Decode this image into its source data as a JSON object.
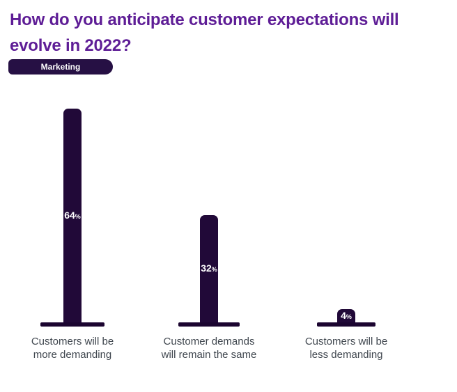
{
  "header": {
    "title_lines": [
      "How do you anticipate customer expectations will",
      "evolve in 2022?"
    ],
    "badge_label": "Marketing"
  },
  "colors": {
    "title_purple": "#5e1d96",
    "bar_fill": "#210938",
    "base_fill": "#1b0530",
    "badge_bg": "#261044",
    "value_text": "#ffffff",
    "category_text": "#40474f",
    "page_bg": "#ffffff"
  },
  "chart_data": {
    "type": "bar",
    "title": "How do you anticipate customer expectations will evolve in 2022?",
    "series_label": "Marketing",
    "categories": [
      "Customers will be more demanding",
      "Customer demands will remain the same",
      "Customers will be less demanding"
    ],
    "values": [
      64,
      32,
      4
    ],
    "unit": "%",
    "value_labels": [
      "64%",
      "32%",
      "4%"
    ],
    "ylim": [
      0,
      70
    ],
    "grid": false,
    "axes_hidden": true,
    "legend_position": "none"
  },
  "bars": [
    {
      "value": 64,
      "unit": "%",
      "line1": "Customers will be",
      "line2": "more demanding"
    },
    {
      "value": 32,
      "unit": "%",
      "line1": "Customer demands",
      "line2": "will remain the same"
    },
    {
      "value": 4,
      "unit": "%",
      "line1": "Customers will be",
      "line2": "less demanding"
    }
  ]
}
